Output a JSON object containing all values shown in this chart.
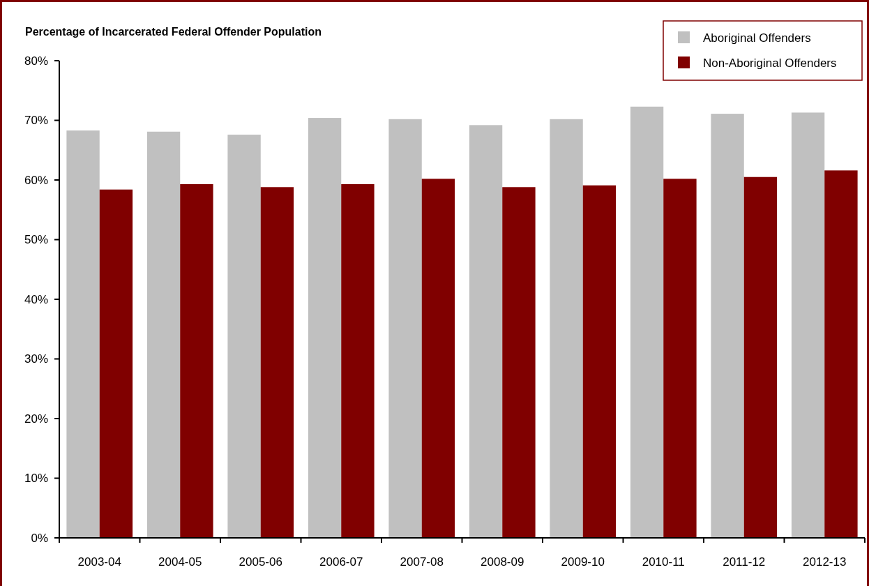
{
  "chart_data": {
    "type": "bar",
    "ylabel": "Percentage of Incarcerated Federal Offender Population",
    "categories": [
      "2003-04",
      "2004-05",
      "2005-06",
      "2006-07",
      "2007-08",
      "2008-09",
      "2009-10",
      "2010-11",
      "2011-12",
      "2012-13"
    ],
    "series": [
      {
        "name": "Aboriginal Offenders",
        "color": "#c0c0c0",
        "values": [
          68.3,
          68.1,
          67.6,
          70.4,
          70.2,
          69.2,
          70.2,
          72.3,
          71.1,
          71.3
        ]
      },
      {
        "name": "Non-Aboriginal Offenders",
        "color": "#800000",
        "values": [
          58.4,
          59.3,
          58.8,
          59.3,
          60.2,
          58.8,
          59.1,
          60.2,
          60.5,
          61.6
        ]
      }
    ],
    "ylim": [
      0,
      80
    ],
    "yticks": [
      {
        "value": 0,
        "label": "0%"
      },
      {
        "value": 10,
        "label": "10%"
      },
      {
        "value": 20,
        "label": "20%"
      },
      {
        "value": 30,
        "label": "30%"
      },
      {
        "value": 40,
        "label": "40%"
      },
      {
        "value": 50,
        "label": "50%"
      },
      {
        "value": 60,
        "label": "60%"
      },
      {
        "value": 70,
        "label": "70%"
      },
      {
        "value": 80,
        "label": "80%"
      }
    ],
    "grid": false,
    "legend": "top right"
  }
}
